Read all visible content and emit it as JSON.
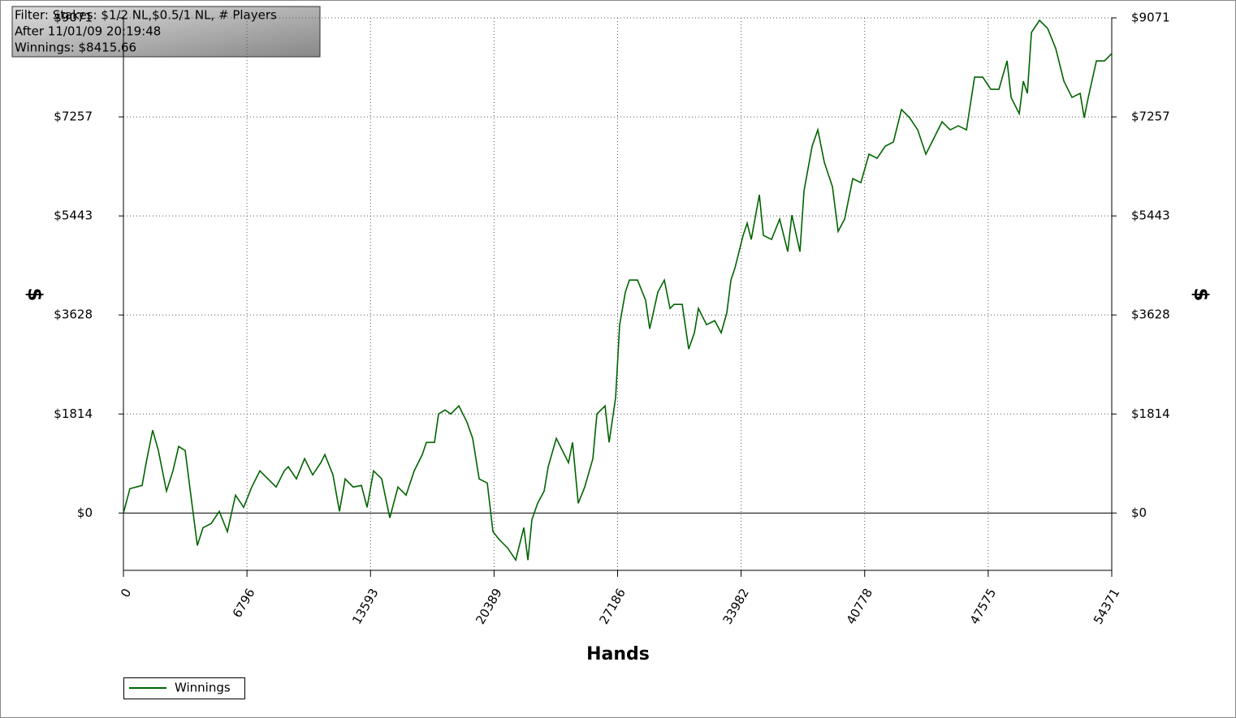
{
  "chart_data": {
    "type": "line",
    "annotations": [
      "Filter: Stakes: $1/2 NL,$0.5/1 NL, # Players",
      "After 11/01/09 20:19:48",
      "Winnings: $8415.66"
    ],
    "x_label": "Hands",
    "y_label": "$",
    "xlim": [
      0,
      54371
    ],
    "xticks": [
      0,
      6796,
      13593,
      20389,
      27186,
      33982,
      40778,
      47575,
      54371
    ],
    "ylim": [
      -1050,
      9071
    ],
    "yticks": [
      {
        "value": 0,
        "label": "$0"
      },
      {
        "value": 1814.2,
        "label": "$1814"
      },
      {
        "value": 3628.4,
        "label": "$3628"
      },
      {
        "value": 5442.6,
        "label": "$5443"
      },
      {
        "value": 7256.8,
        "label": "$7257"
      },
      {
        "value": 9071,
        "label": "$9071"
      }
    ],
    "grid": true,
    "legend": "bottom-left",
    "x": [
      0,
      357,
      1028,
      1251,
      1608,
      1921,
      2368,
      2725,
      3038,
      3396,
      3708,
      4066,
      4379,
      4825,
      5272,
      5719,
      6166,
      6613,
      7059,
      7506,
      7953,
      8400,
      8847,
      9070,
      9517,
      9964,
      10410,
      10857,
      11081,
      11527,
      11885,
      12198,
      12644,
      13091,
      13404,
      13761,
      14208,
      14655,
      15102,
      15549,
      15995,
      16442,
      16666,
      17112,
      17336,
      17693,
      18006,
      18453,
      18900,
      19212,
      19570,
      20017,
      20329,
      20687,
      21134,
      21580,
      22027,
      22251,
      22474,
      22787,
      23144,
      23368,
      23814,
      24038,
      24485,
      24708,
      25021,
      25378,
      25825,
      26048,
      26495,
      26719,
      27076,
      27299,
      27612,
      27835,
      28282,
      28729,
      28953,
      29399,
      29757,
      30070,
      30293,
      30740,
      31097,
      31410,
      31633,
      32080,
      32527,
      32884,
      33197,
      33421,
      33644,
      34091,
      34314,
      34538,
      34984,
      35208,
      35655,
      36101,
      36548,
      36772,
      37218,
      37442,
      37889,
      38201,
      38559,
      39006,
      39318,
      39676,
      40123,
      40569,
      41016,
      41463,
      41910,
      42357,
      42803,
      43250,
      43697,
      44144,
      44591,
      45037,
      45484,
      45931,
      46378,
      46825,
      47271,
      47718,
      48165,
      48612,
      48835,
      49282,
      49505,
      49729,
      49952,
      50399,
      50846,
      51293,
      51739,
      52186,
      52633,
      52856,
      53080,
      53527,
      53973,
      54371
    ],
    "series": [
      {
        "name": "Winnings",
        "color": "#006400",
        "values": [
          0,
          446,
          506,
          922,
          1517,
          1145,
          401,
          773,
          1219,
          1145,
          327,
          -595,
          -268,
          -193,
          30,
          -342,
          327,
          104,
          476,
          773,
          625,
          476,
          773,
          848,
          625,
          996,
          699,
          922,
          1071,
          699,
          30,
          625,
          476,
          506,
          104,
          773,
          625,
          -89,
          476,
          327,
          773,
          1071,
          1294,
          1294,
          1814,
          1888,
          1814,
          1963,
          1665,
          1368,
          625,
          550,
          -342,
          -491,
          -639,
          -862,
          -268,
          -862,
          -119,
          178,
          401,
          848,
          1368,
          1219,
          922,
          1294,
          178,
          476,
          996,
          1814,
          1963,
          1294,
          2112,
          3450,
          4045,
          4268,
          4268,
          3896,
          3375,
          4045,
          4268,
          3747,
          3822,
          3822,
          3004,
          3301,
          3747,
          3450,
          3524,
          3301,
          3673,
          4268,
          4491,
          5086,
          5309,
          5011,
          5829,
          5086,
          5011,
          5383,
          4788,
          5457,
          4788,
          5903,
          6721,
          7019,
          6424,
          5978,
          5160,
          5383,
          6126,
          6052,
          6573,
          6498,
          6721,
          6796,
          7390,
          7242,
          7019,
          6573,
          6870,
          7167,
          7019,
          7093,
          7019,
          7985,
          7985,
          7762,
          7762,
          8283,
          7613,
          7316,
          7911,
          7688,
          8803,
          9026,
          8877,
          8506,
          7911,
          7613,
          7688,
          7242,
          7613,
          8283,
          8283,
          8416
        ]
      }
    ]
  }
}
